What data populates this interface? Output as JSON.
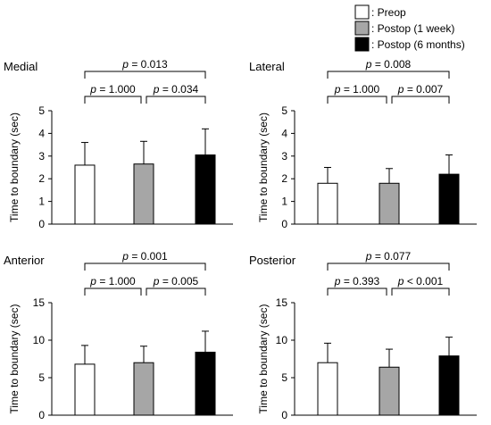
{
  "legend": {
    "entries": [
      {
        "label": ": Preop",
        "color": "#ffffff"
      },
      {
        "label": ": Postop (1 week)",
        "color": "#a6a6a6"
      },
      {
        "label": ": Postop (6 months)",
        "color": "#000000"
      }
    ]
  },
  "chart_data": [
    {
      "type": "bar",
      "title": "Medial",
      "ylabel": "Time to boundary (sec)",
      "ylim": [
        0,
        5
      ],
      "yticks": [
        0,
        1,
        2,
        3,
        4,
        5
      ],
      "categories": [
        "Preop",
        "Postop (1 week)",
        "Postop (6 months)"
      ],
      "values": [
        2.6,
        2.65,
        3.05
      ],
      "errors": [
        1.0,
        1.0,
        1.15
      ],
      "colors": [
        "#ffffff",
        "#a6a6a6",
        "#000000"
      ],
      "comparisons": [
        {
          "from": 0,
          "to": 2,
          "label": "p = 0.013",
          "p_value": "0.013"
        },
        {
          "from": 0,
          "to": 1,
          "label": "p = 1.000",
          "p_value": "1.000"
        },
        {
          "from": 1,
          "to": 2,
          "label": "p = 0.034",
          "p_value": "0.034"
        }
      ]
    },
    {
      "type": "bar",
      "title": "Lateral",
      "ylabel": "Time to boundary (sec)",
      "ylim": [
        0,
        5
      ],
      "yticks": [
        0,
        1,
        2,
        3,
        4,
        5
      ],
      "categories": [
        "Preop",
        "Postop (1 week)",
        "Postop (6 months)"
      ],
      "values": [
        1.8,
        1.8,
        2.2
      ],
      "errors": [
        0.7,
        0.65,
        0.85
      ],
      "colors": [
        "#ffffff",
        "#a6a6a6",
        "#000000"
      ],
      "comparisons": [
        {
          "from": 0,
          "to": 2,
          "label": "p = 0.008",
          "p_value": "0.008"
        },
        {
          "from": 0,
          "to": 1,
          "label": "p = 1.000",
          "p_value": "1.000"
        },
        {
          "from": 1,
          "to": 2,
          "label": "p = 0.007",
          "p_value": "0.007"
        }
      ]
    },
    {
      "type": "bar",
      "title": "Anterior",
      "ylabel": "Time to boundary (sec)",
      "ylim": [
        0,
        15
      ],
      "yticks": [
        0,
        5,
        10,
        15
      ],
      "categories": [
        "Preop",
        "Postop (1 week)",
        "Postop (6 months)"
      ],
      "values": [
        6.8,
        7.0,
        8.4
      ],
      "errors": [
        2.5,
        2.2,
        2.8
      ],
      "colors": [
        "#ffffff",
        "#a6a6a6",
        "#000000"
      ],
      "comparisons": [
        {
          "from": 0,
          "to": 2,
          "label": "p = 0.001",
          "p_value": "0.001"
        },
        {
          "from": 0,
          "to": 1,
          "label": "p = 1.000",
          "p_value": "1.000"
        },
        {
          "from": 1,
          "to": 2,
          "label": "p = 0.005",
          "p_value": "0.005"
        }
      ]
    },
    {
      "type": "bar",
      "title": "Posterior",
      "ylabel": "Time to boundary (sec)",
      "ylim": [
        0,
        15
      ],
      "yticks": [
        0,
        5,
        10,
        15
      ],
      "categories": [
        "Preop",
        "Postop (1 week)",
        "Postop (6 months)"
      ],
      "values": [
        7.0,
        6.4,
        7.9
      ],
      "errors": [
        2.6,
        2.4,
        2.5
      ],
      "colors": [
        "#ffffff",
        "#a6a6a6",
        "#000000"
      ],
      "comparisons": [
        {
          "from": 0,
          "to": 2,
          "label": "p = 0.077",
          "p_value": "0.077"
        },
        {
          "from": 0,
          "to": 1,
          "label": "p = 0.393",
          "p_value": "0.393"
        },
        {
          "from": 1,
          "to": 2,
          "label": "p < 0.001",
          "p_value": "< 0.001"
        }
      ]
    }
  ]
}
